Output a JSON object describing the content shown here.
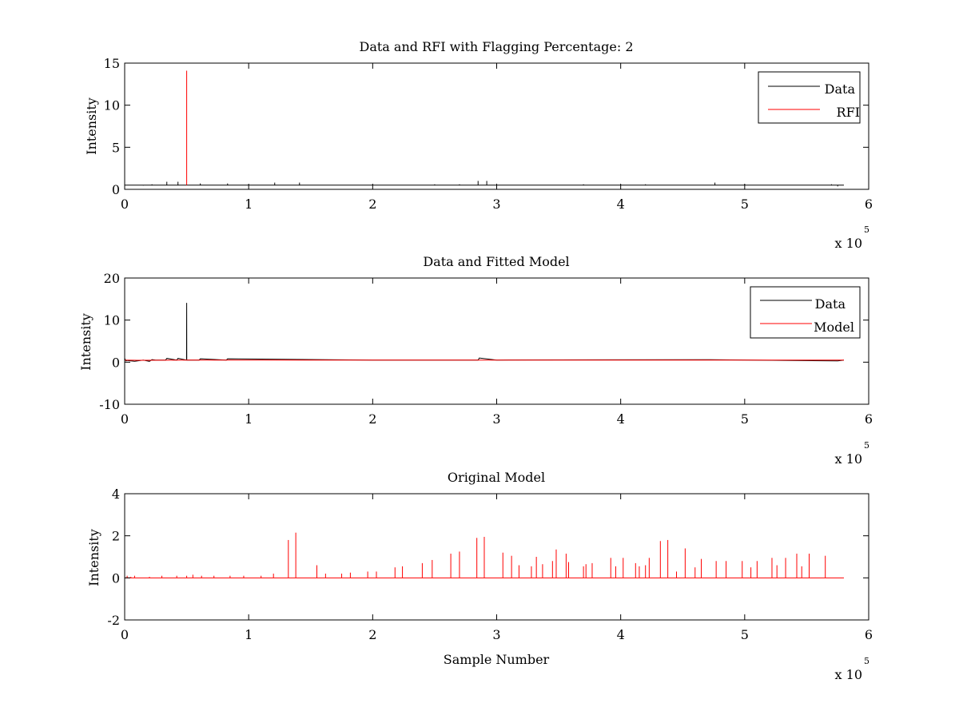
{
  "figure": {
    "background": "#ffffff"
  },
  "chart_data": [
    {
      "type": "line",
      "title": "Data and RFI with Flagging Percentage: 2",
      "xlabel": "",
      "ylabel": "Intensity",
      "xlim": [
        0,
        600000
      ],
      "ylim": [
        0,
        15
      ],
      "xticks": [
        0,
        100000,
        200000,
        300000,
        400000,
        500000,
        600000
      ],
      "xtick_labels": [
        "0",
        "1",
        "2",
        "3",
        "4",
        "5",
        "6"
      ],
      "yticks": [
        0,
        5,
        10,
        15
      ],
      "ytick_labels": [
        "0",
        "5",
        "10",
        "15"
      ],
      "x_multiplier": {
        "base": "x 10",
        "exponent": "5"
      },
      "legend": {
        "position": "top-right"
      },
      "grid": false,
      "series": [
        {
          "name": "Data",
          "color": "#000000",
          "baseline": 0.5,
          "x": [
            0,
            5000,
            10000,
            15000,
            20000,
            22000,
            25000,
            33000,
            34000,
            42000,
            43000,
            60000,
            61000,
            82000,
            83000,
            120000,
            121000,
            140000,
            141000,
            200000,
            250000,
            270000,
            284000,
            285000,
            291000,
            292000,
            300000,
            320000,
            370000,
            400000,
            420000,
            440000,
            475000,
            476000,
            500000,
            520000,
            550000,
            570000,
            575000,
            580000
          ],
          "values": [
            0.6,
            0.5,
            0.5,
            0.45,
            0.5,
            0.6,
            0.5,
            0.5,
            0.9,
            0.5,
            0.9,
            0.5,
            0.7,
            0.5,
            0.7,
            0.5,
            0.8,
            0.5,
            0.8,
            0.5,
            0.6,
            0.6,
            0.5,
            1.0,
            0.5,
            1.0,
            0.6,
            0.5,
            0.6,
            0.5,
            0.6,
            0.5,
            0.5,
            0.8,
            0.6,
            0.5,
            0.5,
            0.6,
            0.35,
            0.5
          ]
        },
        {
          "name": "RFI",
          "color": "#ff0000",
          "x": [
            50000,
            50000,
            50000
          ],
          "values": [
            0.5,
            14.1,
            0.5
          ]
        }
      ]
    },
    {
      "type": "line",
      "title": "Data and Fitted Model",
      "xlabel": "",
      "ylabel": "Intensity",
      "xlim": [
        0,
        600000
      ],
      "ylim": [
        -10,
        20
      ],
      "xticks": [
        0,
        100000,
        200000,
        300000,
        400000,
        500000,
        600000
      ],
      "xtick_labels": [
        "0",
        "1",
        "2",
        "3",
        "4",
        "5",
        "6"
      ],
      "yticks": [
        -10,
        0,
        10,
        20
      ],
      "ytick_labels": [
        "-10",
        "0",
        "10",
        "20"
      ],
      "x_multiplier": {
        "base": "x 10",
        "exponent": "5"
      },
      "legend": {
        "position": "top-right"
      },
      "grid": false,
      "series": [
        {
          "name": "Data",
          "color": "#000000",
          "x": [
            0,
            1000,
            2000,
            8000,
            15000,
            20000,
            22000,
            25000,
            33000,
            34000,
            42000,
            43000,
            49900,
            50000,
            50100,
            60000,
            61000,
            82000,
            83000,
            200000,
            285000,
            286000,
            300000,
            470000,
            575000,
            580000
          ],
          "values": [
            0.9,
            0.3,
            0.4,
            0.2,
            0.5,
            0.2,
            0.6,
            0.5,
            0.5,
            0.9,
            0.5,
            0.9,
            0.5,
            14.1,
            0.5,
            0.5,
            0.8,
            0.5,
            0.8,
            0.5,
            0.5,
            1.0,
            0.5,
            0.6,
            0.3,
            0.5
          ]
        },
        {
          "name": "Model",
          "color": "#ff0000",
          "x": [
            0,
            10000,
            50000,
            200000,
            400000,
            580000
          ],
          "values": [
            0.5,
            0.45,
            0.5,
            0.5,
            0.5,
            0.5
          ]
        }
      ]
    },
    {
      "type": "line",
      "title": "Original Model",
      "xlabel": "Sample Number",
      "ylabel": "Intensity",
      "xlim": [
        0,
        600000
      ],
      "ylim": [
        -2,
        4
      ],
      "xticks": [
        0,
        100000,
        200000,
        300000,
        400000,
        500000,
        600000
      ],
      "xtick_labels": [
        "0",
        "1",
        "2",
        "3",
        "4",
        "5",
        "6"
      ],
      "yticks": [
        -2,
        0,
        2,
        4
      ],
      "ytick_labels": [
        "-2",
        "0",
        "2",
        "4"
      ],
      "x_multiplier": {
        "base": "x 10",
        "exponent": "5"
      },
      "legend": null,
      "grid": false,
      "series": [
        {
          "color": "#ff0000",
          "baseline": 0,
          "x": [
            2000,
            5000,
            8000,
            20000,
            30000,
            42000,
            50000,
            55000,
            62000,
            72000,
            85000,
            96000,
            110000,
            120000,
            132000,
            138000,
            155000,
            162000,
            175000,
            182000,
            196000,
            203000,
            218000,
            224000,
            240000,
            248000,
            263000,
            270000,
            284000,
            290000,
            305000,
            312000,
            318000,
            328000,
            332000,
            337000,
            345000,
            348000,
            356000,
            358000,
            370000,
            372000,
            377000,
            392000,
            396000,
            402000,
            412000,
            415000,
            420000,
            423000,
            432000,
            438000,
            445000,
            452000,
            460000,
            465000,
            477000,
            485000,
            498000,
            505000,
            510000,
            522000,
            526000,
            533000,
            542000,
            546000,
            552000,
            565000
          ],
          "values": [
            0.1,
            0.05,
            0.1,
            0.05,
            0.1,
            0.1,
            0.1,
            0.15,
            0.1,
            0.1,
            0.1,
            0.1,
            0.1,
            0.2,
            1.8,
            2.15,
            0.6,
            0.2,
            0.2,
            0.25,
            0.3,
            0.3,
            0.5,
            0.55,
            0.7,
            0.85,
            1.15,
            1.25,
            1.9,
            1.95,
            1.2,
            1.05,
            0.6,
            0.55,
            1.0,
            0.65,
            0.8,
            1.35,
            1.15,
            0.75,
            0.55,
            0.65,
            0.7,
            0.95,
            0.55,
            0.95,
            0.7,
            0.55,
            0.6,
            0.95,
            1.75,
            1.8,
            0.3,
            1.4,
            0.5,
            0.9,
            0.8,
            0.8,
            0.8,
            0.5,
            0.8,
            0.95,
            0.6,
            0.95,
            1.15,
            0.55,
            1.15,
            1.05
          ]
        }
      ]
    }
  ]
}
